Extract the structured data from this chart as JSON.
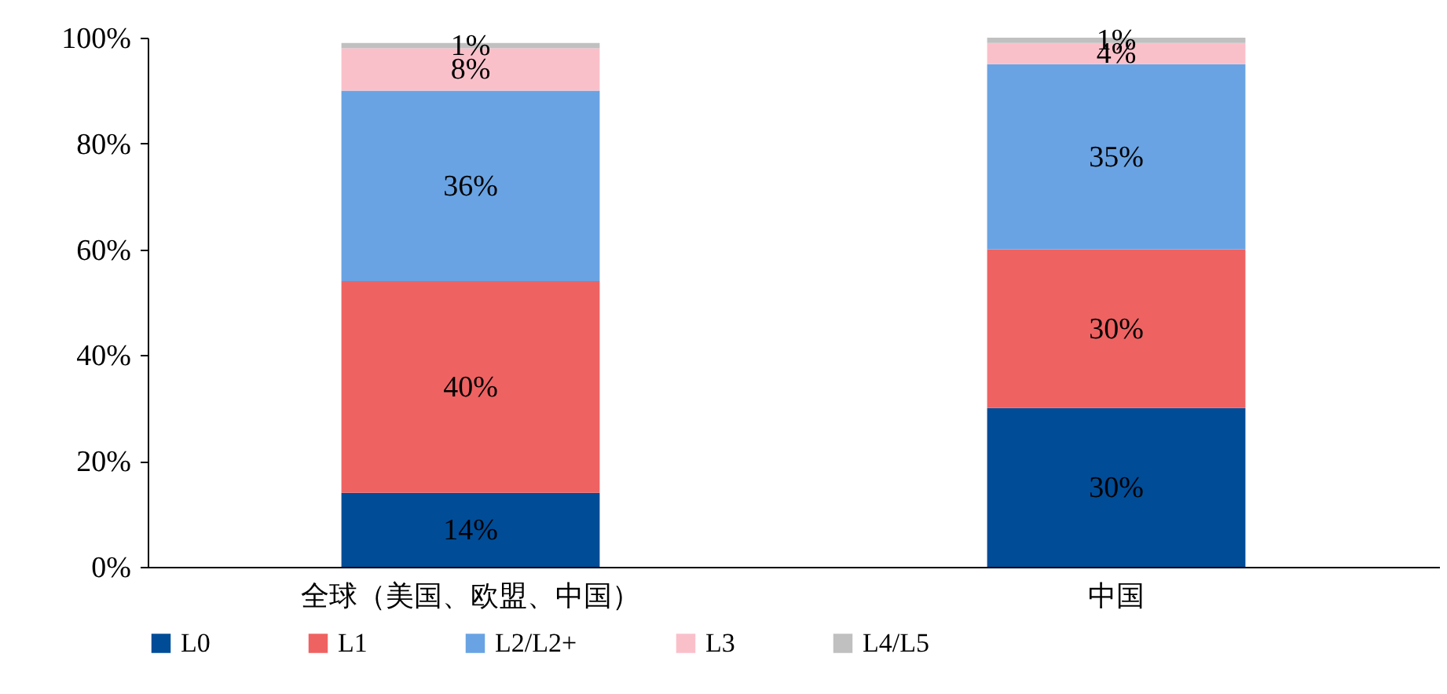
{
  "chart_data": {
    "type": "bar",
    "stacked": true,
    "categories": [
      "全球（美国、欧盟、中国）",
      "中国"
    ],
    "series": [
      {
        "name": "L0",
        "color": "#004c97",
        "values": [
          14,
          30
        ],
        "value_labels": [
          "14%",
          "30%"
        ]
      },
      {
        "name": "L1",
        "color": "#ef6262",
        "values": [
          40,
          30
        ],
        "value_labels": [
          "40%",
          "30%"
        ]
      },
      {
        "name": "L2/L2+",
        "color": "#69a3e3",
        "values": [
          36,
          35
        ],
        "value_labels": [
          "36%",
          "35%"
        ]
      },
      {
        "name": "L3",
        "color": "#fac0ca",
        "values": [
          8,
          4
        ],
        "value_labels": [
          "8%",
          "4%"
        ]
      },
      {
        "name": "L4/L5",
        "color": "#c0c0c0",
        "values": [
          1,
          1
        ],
        "value_labels": [
          "1%",
          "1%"
        ]
      }
    ],
    "ylim": [
      0,
      100
    ],
    "yticks": [
      {
        "value": 0,
        "label": "0%"
      },
      {
        "value": 20,
        "label": "20%"
      },
      {
        "value": 40,
        "label": "40%"
      },
      {
        "value": 60,
        "label": "60%"
      },
      {
        "value": 80,
        "label": "80%"
      },
      {
        "value": 100,
        "label": "100%"
      }
    ],
    "grid": false,
    "legend": "bottom"
  }
}
